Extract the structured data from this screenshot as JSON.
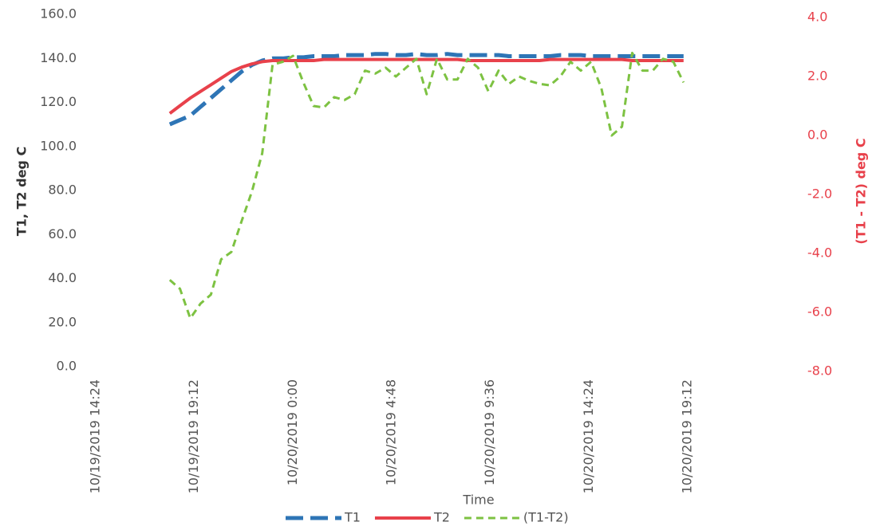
{
  "chart_data": {
    "type": "line",
    "x_label": "Time",
    "y_label": "T1, T2  deg C",
    "y2_label": "(T1 - T2) deg C",
    "x": [
      "10/19/2019 18:00",
      "10/19/2019 18:30",
      "10/19/2019 19:00",
      "10/19/2019 19:30",
      "10/19/2019 20:00",
      "10/19/2019 20:30",
      "10/19/2019 21:00",
      "10/19/2019 21:30",
      "10/19/2019 22:00",
      "10/19/2019 22:30",
      "10/19/2019 23:00",
      "10/19/2019 23:30",
      "10/20/2019 0:00",
      "10/20/2019 0:30",
      "10/20/2019 1:00",
      "10/20/2019 1:30",
      "10/20/2019 2:00",
      "10/20/2019 2:30",
      "10/20/2019 3:00",
      "10/20/2019 3:30",
      "10/20/2019 4:00",
      "10/20/2019 4:30",
      "10/20/2019 5:00",
      "10/20/2019 5:30",
      "10/20/2019 6:00",
      "10/20/2019 6:30",
      "10/20/2019 7:00",
      "10/20/2019 7:30",
      "10/20/2019 8:00",
      "10/20/2019 8:30",
      "10/20/2019 9:00",
      "10/20/2019 9:30",
      "10/20/2019 10:00",
      "10/20/2019 10:30",
      "10/20/2019 11:00",
      "10/20/2019 11:30",
      "10/20/2019 12:00",
      "10/20/2019 12:30",
      "10/20/2019 13:00",
      "10/20/2019 13:30",
      "10/20/2019 14:00",
      "10/20/2019 14:30",
      "10/20/2019 15:00",
      "10/20/2019 15:30",
      "10/20/2019 16:00",
      "10/20/2019 16:30",
      "10/20/2019 17:00",
      "10/20/2019 17:30",
      "10/20/2019 18:00",
      "10/20/2019 18:30",
      "10/20/2019 19:00"
    ],
    "series": [
      {
        "name": "T1",
        "color": "#2e75b6",
        "values": [
          110,
          112,
          114,
          118,
          122,
          126,
          130,
          134,
          137,
          139,
          140,
          140,
          140.5,
          140.5,
          141,
          141,
          141,
          141.5,
          141.5,
          141.5,
          142,
          142,
          141.5,
          141.5,
          142,
          141.5,
          141.5,
          142,
          141.5,
          141.5,
          141.5,
          141.5,
          141.5,
          141,
          141,
          141,
          141,
          141,
          141.5,
          141.5,
          141.5,
          141,
          141,
          141,
          141,
          141,
          141,
          141,
          141,
          141,
          141
        ]
      },
      {
        "name": "T2",
        "color": "#e8414b",
        "values": [
          115,
          118.5,
          122,
          125,
          128,
          131,
          134,
          136,
          137.5,
          138.5,
          139,
          139,
          139,
          139,
          139,
          139.5,
          139.5,
          139.5,
          139.5,
          139.5,
          139.5,
          139.5,
          139.5,
          139.5,
          139.5,
          139.5,
          139.5,
          139.5,
          139.5,
          139,
          139,
          139,
          139,
          139,
          139,
          139,
          139,
          139.5,
          139.5,
          139.5,
          139.5,
          139.5,
          139.5,
          139.5,
          139.5,
          139,
          139,
          139,
          139,
          139,
          139
        ]
      },
      {
        "name": "(T1-T2)",
        "color": "#7dc242",
        "axis": "y2",
        "values": [
          -4.9,
          -5.2,
          -6.2,
          -5.7,
          -5.4,
          -4.2,
          -3.95,
          -2.9,
          -1.9,
          -0.6,
          2.4,
          2.5,
          2.7,
          1.8,
          1.0,
          0.95,
          1.3,
          1.2,
          1.4,
          2.2,
          2.1,
          2.3,
          2.0,
          2.3,
          2.6,
          1.4,
          2.6,
          1.9,
          1.9,
          2.6,
          2.3,
          1.5,
          2.2,
          1.75,
          2.0,
          1.85,
          1.75,
          1.7,
          2.0,
          2.5,
          2.2,
          2.5,
          1.6,
          0.0,
          0.3,
          2.8,
          2.2,
          2.2,
          2.6,
          2.5,
          1.8
        ]
      }
    ],
    "xlim": [
      "10/19/2019 14:24",
      "10/20/2019 19:12"
    ],
    "xticks": [
      "10/19/2019 14:24",
      "10/19/2019 19:12",
      "10/20/2019 0:00",
      "10/20/2019 4:48",
      "10/20/2019 9:36",
      "10/20/2019 14:24",
      "10/20/2019 19:12"
    ],
    "ylim": [
      0,
      160
    ],
    "yticks": [
      {
        "value": 0,
        "label": "0.0"
      },
      {
        "value": 20,
        "label": "20.0"
      },
      {
        "value": 40,
        "label": "40.0"
      },
      {
        "value": 60,
        "label": "60.0"
      },
      {
        "value": 80,
        "label": "80.0"
      },
      {
        "value": 100,
        "label": "100.0"
      },
      {
        "value": 120,
        "label": "120.0"
      },
      {
        "value": 140,
        "label": "140.0"
      },
      {
        "value": 160,
        "label": "160.0"
      }
    ],
    "y2lim": [
      -8,
      4
    ],
    "y2ticks": [
      {
        "value": -8,
        "label": "-8.0"
      },
      {
        "value": -6,
        "label": "-6.0"
      },
      {
        "value": -4,
        "label": "-4.0"
      },
      {
        "value": -2,
        "label": "-2.0"
      },
      {
        "value": 0,
        "label": "0.0"
      },
      {
        "value": 2,
        "label": "2.0"
      },
      {
        "value": 4,
        "label": "4.0"
      }
    ],
    "legend": "bottom"
  }
}
